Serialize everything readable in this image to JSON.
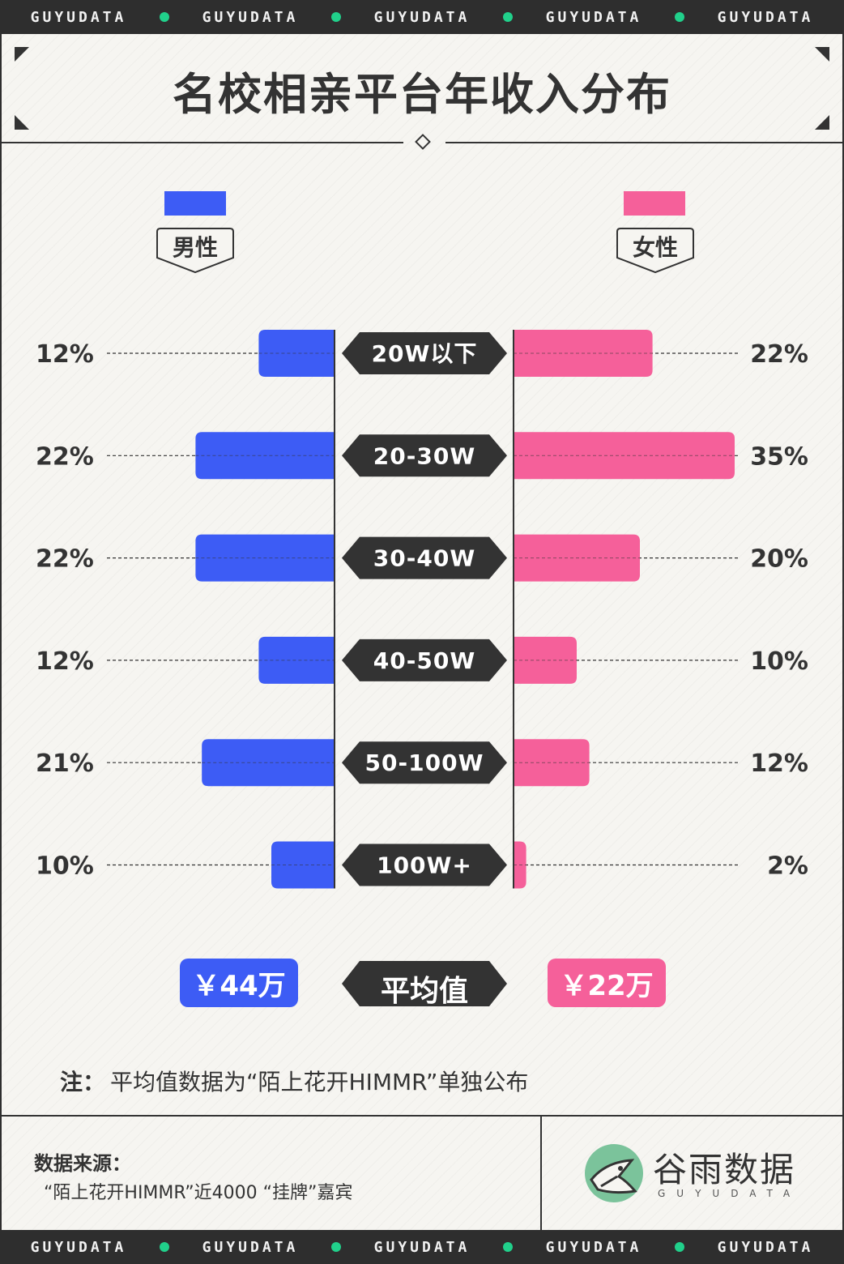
{
  "band_word": "GUYUDATA",
  "title": "名校相亲平台年收入分布",
  "legend": {
    "male": "男性",
    "female": "女性"
  },
  "colors": {
    "male": "#3d5cf5",
    "female": "#f5609a",
    "dark": "#333333",
    "green": "#21d08b"
  },
  "chart_data": {
    "type": "bar",
    "categories": [
      "20W以下",
      "20-30W",
      "30-40W",
      "40-50W",
      "50-100W",
      "100W+"
    ],
    "series": [
      {
        "name": "男性",
        "values": [
          12,
          22,
          22,
          12,
          21,
          10
        ],
        "labels": [
          "12%",
          "22%",
          "22%",
          "12%",
          "21%",
          "10%"
        ]
      },
      {
        "name": "女性",
        "values": [
          22,
          35,
          20,
          10,
          12,
          2
        ],
        "labels": [
          "22%",
          "35%",
          "20%",
          "10%",
          "12%",
          "2%"
        ]
      }
    ]
  },
  "average": {
    "label": "平均值",
    "male": "￥44万",
    "female": "￥22万"
  },
  "note": {
    "prefix": "注：",
    "text": "平均值数据为“陌上花开HIMMR”单独公布"
  },
  "source": {
    "title": "数据来源：",
    "text": "“陌上花开HIMMR”近4000 “挂牌”嘉宾"
  },
  "logo": {
    "name": "谷雨数据",
    "sub": "GUYUDATA"
  }
}
